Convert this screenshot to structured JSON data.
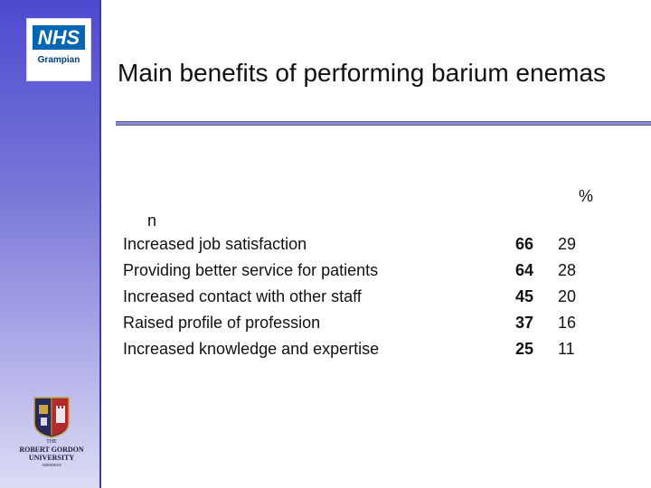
{
  "slide": {
    "title": "Main benefits of performing barium enemas",
    "header_percent": "%",
    "header_n": "n",
    "rows": [
      {
        "label": "Increased job satisfaction",
        "n": "66",
        "pct": "29"
      },
      {
        "label": "Providing better service for patients",
        "n": "64",
        "pct": "28"
      },
      {
        "label": "Increased contact with other staff",
        "n": "45",
        "pct": "20"
      },
      {
        "label": "Raised profile of profession",
        "n": "37",
        "pct": "16"
      },
      {
        "label": "Increased knowledge and expertise",
        "n": "25",
        "pct": "11"
      }
    ]
  },
  "logos": {
    "nhs": {
      "mark": "NHS",
      "name": "Grampian",
      "color": "#0066b3"
    },
    "rgu": {
      "line1": "THE",
      "line2": "ROBERT GORDON",
      "line3": "UNIVERSITY",
      "line4": "ABERDEEN"
    }
  },
  "colors": {
    "sidebar_top": "#4e4ad0",
    "sidebar_bottom": "#dcdcf4",
    "title_rule": "#8c8ac8"
  }
}
